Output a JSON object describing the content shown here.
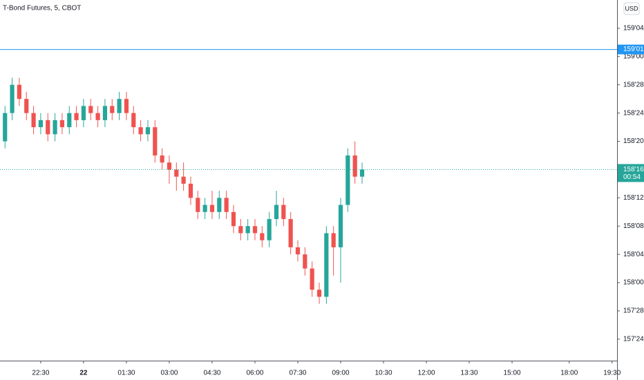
{
  "chart_data": {
    "type": "candlestick",
    "title": "T-Bond Futures, 5, CBOT",
    "currency": "USD",
    "up_color": "#26a69a",
    "down_color": "#ef5350",
    "x": [
      1,
      2,
      3,
      4,
      5,
      6,
      7,
      8,
      9,
      10,
      11,
      12,
      13,
      14,
      15,
      16,
      17,
      18,
      19,
      20,
      21,
      22,
      23,
      24,
      25,
      26,
      27,
      28,
      29,
      30,
      31,
      32,
      33,
      34,
      35,
      36,
      37,
      38,
      39,
      40,
      41,
      42,
      43,
      44,
      45,
      46,
      47,
      48,
      49,
      50,
      51
    ],
    "open": [
      158.625,
      158.75,
      158.875,
      158.8125,
      158.75,
      158.6875,
      158.71875,
      158.65625,
      158.71875,
      158.6875,
      158.75,
      158.71875,
      158.78125,
      158.75,
      158.71875,
      158.78125,
      158.75,
      158.8125,
      158.75,
      158.6875,
      158.65625,
      158.6875,
      158.5625,
      158.53125,
      158.5,
      158.46875,
      158.4375,
      158.375,
      158.3125,
      158.34375,
      158.3125,
      158.375,
      158.3125,
      158.25,
      158.21875,
      158.25,
      158.21875,
      158.1875,
      158.28125,
      158.34375,
      158.28125,
      158.15625,
      158.125,
      158.0625,
      157.96875,
      157.9375,
      158.21875,
      158.15625,
      158.34375,
      158.5625,
      158.46875
    ],
    "high": [
      158.78125,
      158.90625,
      158.90625,
      158.84375,
      158.78125,
      158.75,
      158.75,
      158.75,
      158.75,
      158.78125,
      158.78125,
      158.8125,
      158.8125,
      158.78125,
      158.8125,
      158.8125,
      158.84375,
      158.84375,
      158.78125,
      158.71875,
      158.71875,
      158.71875,
      158.59375,
      158.5625,
      158.53125,
      158.53125,
      158.46875,
      158.40625,
      158.375,
      158.40625,
      158.40625,
      158.40625,
      158.34375,
      158.28125,
      158.28125,
      158.28125,
      158.25,
      158.3125,
      158.40625,
      158.375,
      158.3125,
      158.1875,
      158.15625,
      158.09375,
      158,
      158.25,
      158.25,
      158.375,
      158.59375,
      158.625,
      158.53125
    ],
    "low": [
      158.59375,
      158.71875,
      158.78125,
      158.71875,
      158.65625,
      158.65625,
      158.625,
      158.625,
      158.65625,
      158.65625,
      158.6875,
      158.6875,
      158.71875,
      158.6875,
      158.6875,
      158.71875,
      158.71875,
      158.71875,
      158.65625,
      158.625,
      158.625,
      158.53125,
      158.5,
      158.4375,
      158.40625,
      158.40625,
      158.34375,
      158.28125,
      158.28125,
      158.28125,
      158.28125,
      158.28125,
      158.21875,
      158.1875,
      158.1875,
      158.1875,
      158.15625,
      158.15625,
      158.25,
      158.25,
      158.125,
      158.09375,
      158.03125,
      157.9375,
      157.90625,
      157.90625,
      158.03125,
      158,
      158.3125,
      158.4375,
      158.4375
    ],
    "close": [
      158.75,
      158.875,
      158.8125,
      158.75,
      158.6875,
      158.71875,
      158.65625,
      158.71875,
      158.6875,
      158.75,
      158.71875,
      158.78125,
      158.75,
      158.71875,
      158.78125,
      158.75,
      158.8125,
      158.75,
      158.6875,
      158.65625,
      158.6875,
      158.5625,
      158.53125,
      158.5,
      158.46875,
      158.4375,
      158.375,
      158.3125,
      158.34375,
      158.3125,
      158.375,
      158.3125,
      158.25,
      158.21875,
      158.25,
      158.21875,
      158.1875,
      158.28125,
      158.34375,
      158.28125,
      158.15625,
      158.125,
      158.0625,
      157.96875,
      157.9375,
      158.21875,
      158.15625,
      158.34375,
      158.5625,
      158.46875,
      158.5
    ],
    "xlim": [
      0.3,
      86.7
    ],
    "xticks": [
      {
        "value": 6,
        "label": "22:30"
      },
      {
        "value": 12,
        "label": "22"
      },
      {
        "value": 18,
        "label": "01:30"
      },
      {
        "value": 24,
        "label": "03:00"
      },
      {
        "value": 30,
        "label": "04:30"
      },
      {
        "value": 36,
        "label": "06:00"
      },
      {
        "value": 42,
        "label": "07:30"
      },
      {
        "value": 48,
        "label": "09:00"
      },
      {
        "value": 54,
        "label": "10:30"
      },
      {
        "value": 60,
        "label": "12:00"
      },
      {
        "value": 66,
        "label": "13:30"
      },
      {
        "value": 72,
        "label": "15:00"
      },
      {
        "value": 80,
        "label": "18:00"
      },
      {
        "value": 86,
        "label": "19:30"
      }
    ],
    "ylim": [
      157.655,
      159.25
    ],
    "yticks": [
      {
        "value": 157.75,
        "label": "157'24"
      },
      {
        "value": 157.875,
        "label": "157'28"
      },
      {
        "value": 158,
        "label": "158'00"
      },
      {
        "value": 158.125,
        "label": "158'04"
      },
      {
        "value": 158.25,
        "label": "158'08"
      },
      {
        "value": 158.375,
        "label": "158'12"
      },
      {
        "value": 158.5,
        "label": "158'16"
      },
      {
        "value": 158.625,
        "label": "158'20"
      },
      {
        "value": 158.75,
        "label": "158'24"
      },
      {
        "value": 158.875,
        "label": "158'28"
      },
      {
        "value": 159,
        "label": "159'00"
      },
      {
        "value": 159.125,
        "label": "159'04"
      }
    ],
    "alert_line": {
      "value": 159.03125,
      "label": "159'01",
      "color": "#2196f3"
    },
    "last_price": {
      "value": 158.5,
      "label": "158'16",
      "countdown": "00:54",
      "color": "#26a69a"
    }
  }
}
